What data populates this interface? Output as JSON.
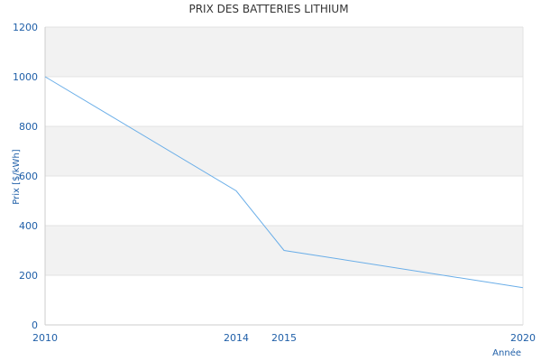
{
  "chart_data": {
    "type": "line",
    "title": "PRIX DES BATTERIES LITHIUM",
    "xlabel": "Année",
    "ylabel": "Prix [$/kWh]",
    "x": [
      2010,
      2014,
      2015,
      2020
    ],
    "series": [
      {
        "values": [
          1000,
          540,
          300,
          150
        ]
      }
    ],
    "xlim": [
      2010,
      2020
    ],
    "ylim": [
      0,
      1200
    ],
    "x_ticks": [
      2010,
      2014,
      2015,
      2020
    ],
    "y_ticks": [
      0,
      200,
      400,
      600,
      800,
      1000,
      1200
    ],
    "grid": true,
    "legend": "none",
    "colors": {
      "line": "#6aaee8",
      "band": "#f2f2f2",
      "text": "#1f5fa8",
      "title": "#333333"
    }
  }
}
